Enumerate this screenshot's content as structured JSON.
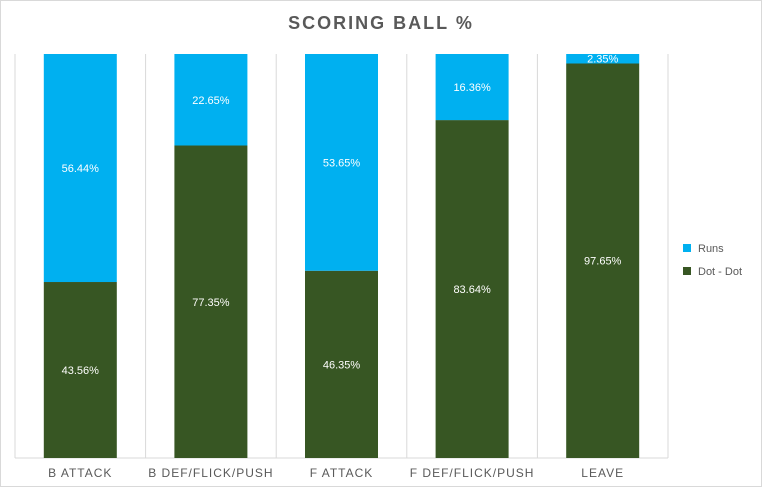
{
  "chart_data": {
    "type": "bar",
    "stacked": true,
    "percent_stacked": true,
    "title": "SCORING BALL %",
    "categories": [
      "B ATTACK",
      "B DEF/FLICK/PUSH",
      "F ATTACK",
      "F DEF/FLICK/PUSH",
      "LEAVE"
    ],
    "series": [
      {
        "name": "Dot - Dot",
        "color": "#375623",
        "values": [
          43.56,
          77.35,
          46.35,
          83.64,
          97.65
        ],
        "labels": [
          "43.56%",
          "77.35%",
          "46.35%",
          "83.64%",
          "97.65%"
        ]
      },
      {
        "name": "Runs",
        "color": "#00b0f0",
        "values": [
          56.44,
          22.65,
          53.65,
          16.36,
          2.35
        ],
        "labels": [
          "56.44%",
          "22.65%",
          "53.65%",
          "16.36%",
          "2.35%"
        ]
      }
    ],
    "legend_order": [
      "Runs",
      "Dot - Dot"
    ],
    "legend_position": "right",
    "ylim": [
      0,
      100
    ],
    "grid": "vertical separators",
    "colors": {
      "axis_text": "#595959",
      "title": "#595959",
      "gridline": "#d9d9d9",
      "data_label": "#ffffff"
    }
  }
}
